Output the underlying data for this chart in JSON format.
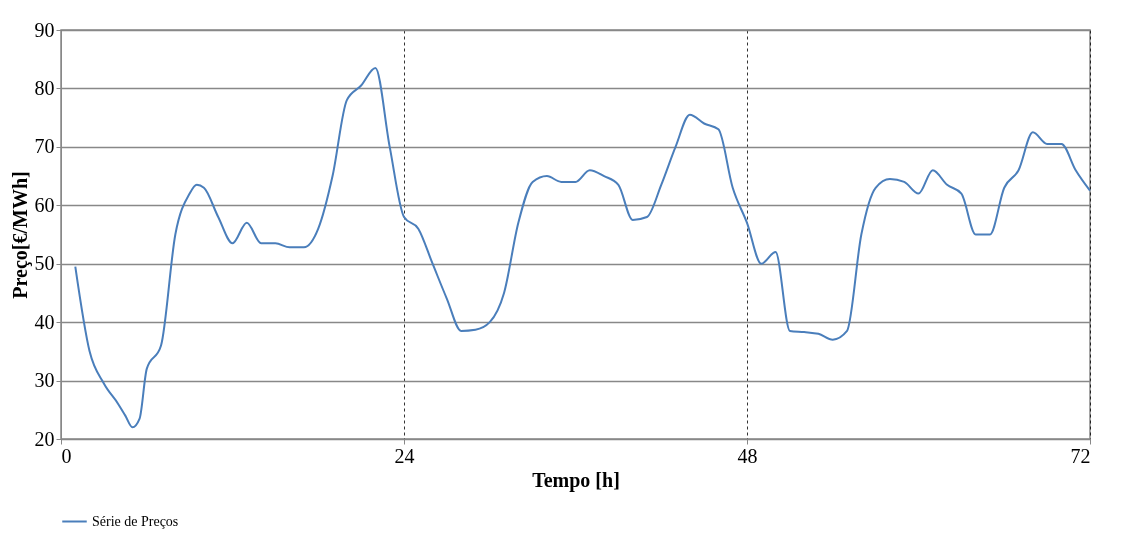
{
  "chart_data": {
    "type": "line",
    "xlabel": "Tempo [h]",
    "ylabel": "Preço[€/MWh]",
    "xlim": [
      0,
      72
    ],
    "xticks": [
      0,
      24,
      48,
      72
    ],
    "ylim": [
      20,
      90
    ],
    "yticks": [
      20,
      30,
      40,
      50,
      60,
      70,
      80,
      90
    ],
    "grid": true,
    "legend": "bottom",
    "marker": "none",
    "line_style": "solid",
    "x": [
      1,
      2,
      3,
      4,
      4.5,
      5,
      5.5,
      6,
      7,
      8,
      9,
      9.5,
      10,
      11,
      12,
      13,
      14,
      15,
      16,
      17,
      18,
      19,
      20,
      21,
      22,
      23,
      24,
      25,
      26,
      27,
      28,
      29,
      30,
      31,
      32,
      33,
      34,
      35,
      36,
      37,
      38,
      39,
      40,
      41,
      42,
      43,
      44,
      45,
      46,
      47,
      48,
      49,
      50,
      51,
      52,
      53,
      54,
      55,
      56,
      57,
      58,
      59,
      60,
      61,
      62,
      63,
      64,
      65,
      66,
      67,
      68,
      69,
      70,
      71,
      72
    ],
    "series": [
      {
        "name": "Série de Preços",
        "color": "#4a7ebb",
        "values": [
          49.5,
          35,
          29.5,
          26,
          24,
          22,
          23.5,
          32,
          36,
          55,
          62,
          63.5,
          63,
          58,
          53.5,
          57,
          53.5,
          53.5,
          52.8,
          52.8,
          56,
          65,
          78,
          80.5,
          83.5,
          70,
          58,
          56,
          50,
          44,
          38.5,
          38.7,
          40,
          45,
          57,
          64,
          65,
          64,
          64,
          66,
          65,
          63.5,
          57.5,
          58,
          63.5,
          70,
          75.5,
          74,
          73,
          63,
          57,
          50,
          52,
          38.5,
          38.3,
          38,
          37,
          38.5,
          55,
          63,
          64.5,
          64,
          62,
          66,
          63.5,
          62,
          55,
          55,
          63,
          66,
          72.5,
          70.5,
          70.5,
          66,
          62.5
        ]
      }
    ]
  }
}
